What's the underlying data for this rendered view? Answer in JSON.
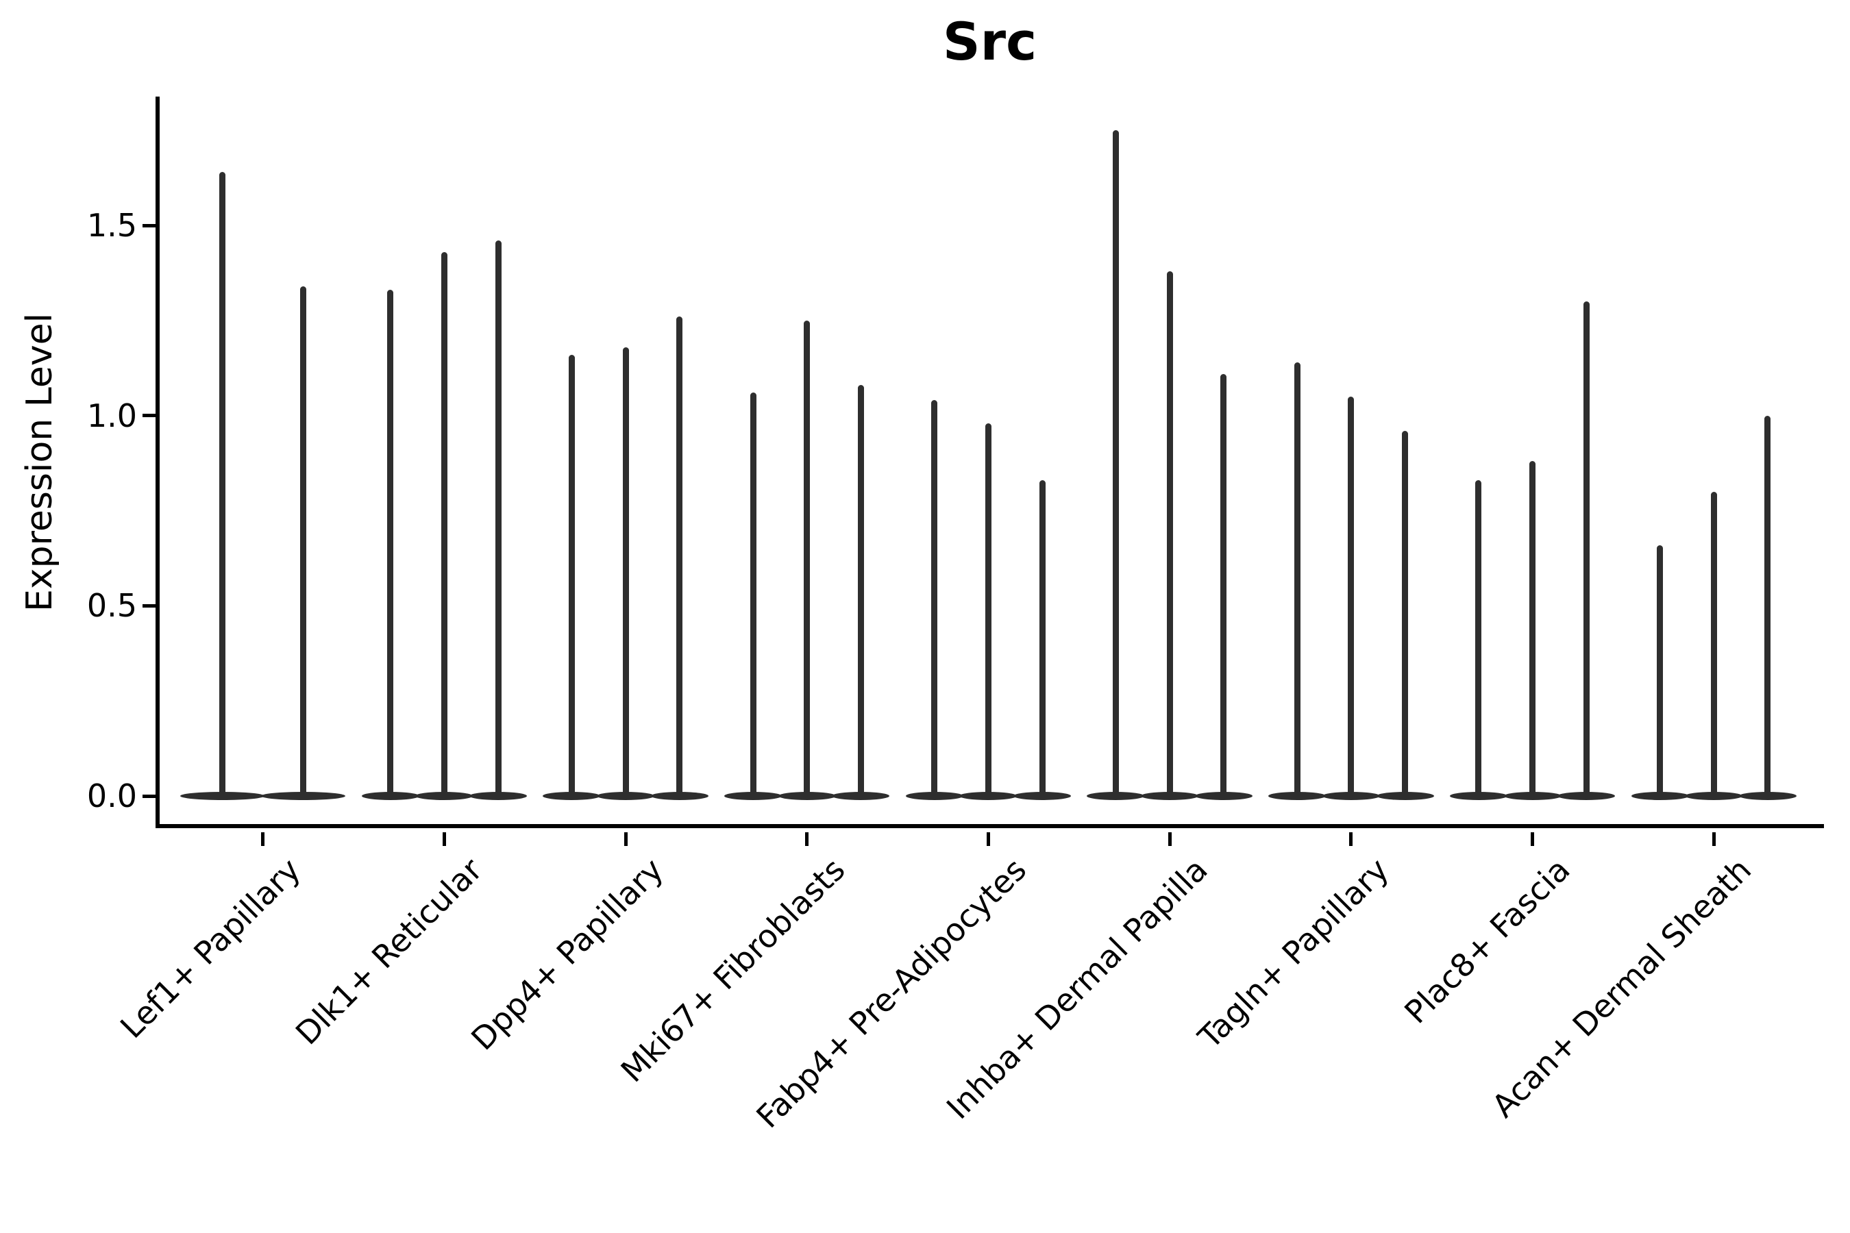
{
  "chart_data": {
    "type": "violin",
    "title": "Src",
    "xlabel": "",
    "ylabel": "Expression Level",
    "yticks": [
      "0.0",
      "0.5",
      "1.0",
      "1.5"
    ],
    "ytick_values": [
      0.0,
      0.5,
      1.0,
      1.5
    ],
    "ylim": [
      -0.085,
      1.84
    ],
    "grid": false,
    "legend": "none",
    "violin_color": "#2e2e2e",
    "axis_color": "#000000",
    "categories": [
      "Lef1+ Papillary",
      "Dlk1+ Reticular",
      "Dpp4+ Papillary",
      "Mki67+ Fibroblasts",
      "Fabp4+ Pre-Adipocytes",
      "Inhba+ Dermal Papilla",
      "Tagln+ Papillary",
      "Plac8+ Fascia",
      "Acan+ Dermal Sheath"
    ],
    "series": [
      {
        "category": "Lef1+ Papillary",
        "violin_max_values": [
          1.64,
          1.34
        ]
      },
      {
        "category": "Dlk1+ Reticular",
        "violin_max_values": [
          1.33,
          1.43,
          1.46
        ]
      },
      {
        "category": "Dpp4+ Papillary",
        "violin_max_values": [
          1.16,
          1.18,
          1.26
        ]
      },
      {
        "category": "Mki67+ Fibroblasts",
        "violin_max_values": [
          1.06,
          1.25,
          1.08
        ]
      },
      {
        "category": "Fabp4+ Pre-Adipocytes",
        "violin_max_values": [
          1.04,
          0.98,
          0.83
        ]
      },
      {
        "category": "Inhba+ Dermal Papilla",
        "violin_max_values": [
          1.75,
          1.38,
          1.11
        ]
      },
      {
        "category": "Tagln+ Papillary",
        "violin_max_values": [
          1.14,
          1.05,
          0.96
        ]
      },
      {
        "category": "Plac8+ Fascia",
        "violin_max_values": [
          0.83,
          0.88,
          1.3
        ]
      },
      {
        "category": "Acan+ Dermal Sheath",
        "violin_max_values": [
          0.66,
          0.8,
          1.0
        ]
      }
    ],
    "violins_all_start_at": 0.0
  }
}
